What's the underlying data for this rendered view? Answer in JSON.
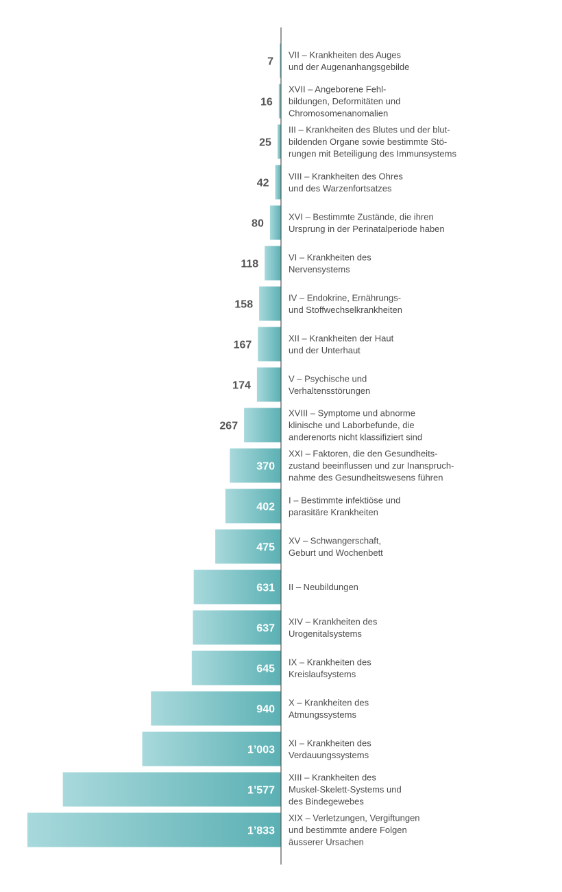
{
  "colors": {
    "bar_light": "#a8d9dc",
    "bar_dark": "#5bb0b3",
    "value_outside": "#555555",
    "value_inside": "#ffffff",
    "axis": "#555555"
  },
  "chart_data": {
    "type": "bar",
    "orientation": "horizontal",
    "title": "",
    "xlabel": "",
    "ylabel": "",
    "xlim": [
      0,
      1833
    ],
    "grid": false,
    "legend": "none",
    "categories": [
      [
        "VII – Krankheiten des Auges",
        "und der Augenanhangsgebilde"
      ],
      [
        "XVII – Angeborene Fehl-",
        "bildungen, Deformitäten und",
        "Chromosomenanomalien"
      ],
      [
        "III – Krankheiten des Blutes und der blut-",
        "bildenden Organe sowie bestimmte Stö-",
        "rungen mit Beteiligung des Immunsystems"
      ],
      [
        "VIII – Krankheiten des Ohres",
        "und des Warzenfortsatzes"
      ],
      [
        "XVI – Bestimmte Zustände, die ihren",
        "Ursprung in der Perinatalperiode haben"
      ],
      [
        "VI – Krankheiten des",
        "Nervensystems"
      ],
      [
        "IV – Endokrine, Ernährungs-",
        "und Stoffwechselkrankheiten"
      ],
      [
        "XII – Krankheiten der Haut",
        "und der Unterhaut"
      ],
      [
        "V – Psychische und",
        "Verhaltensstörungen"
      ],
      [
        "XVIII – Symptome und abnorme",
        "klinische und Laborbefunde, die",
        "anderenorts nicht klassifiziert sind"
      ],
      [
        "XXI – Faktoren, die den Gesundheits-",
        "zustand beeinflussen und zur Inanspruch-",
        "nahme des Gesundheitswesens führen"
      ],
      [
        "I – Bestimmte infektiöse und",
        "parasitäre Krankheiten"
      ],
      [
        "XV – Schwangerschaft,",
        "Geburt und Wochenbett"
      ],
      [
        "II – Neubildungen"
      ],
      [
        "XIV – Krankheiten des",
        "Urogenitalsystems"
      ],
      [
        "IX – Krankheiten des",
        "Kreislaufsystems"
      ],
      [
        "X – Krankheiten des",
        "Atmungssystems"
      ],
      [
        "XI – Krankheiten des",
        "Verdauungssystems"
      ],
      [
        "XIII – Krankheiten des",
        "Muskel-Skelett-Systems und",
        "des Bindegewebes"
      ],
      [
        "XIX – Verletzungen, Vergiftungen",
        "und bestimmte andere Folgen",
        "äusserer Ursachen"
      ]
    ],
    "values": [
      7,
      16,
      25,
      42,
      80,
      118,
      158,
      167,
      174,
      267,
      370,
      402,
      475,
      631,
      637,
      645,
      940,
      1003,
      1577,
      1833
    ],
    "value_labels": [
      "7",
      "16",
      "25",
      "42",
      "80",
      "118",
      "158",
      "167",
      "174",
      "267",
      "370",
      "402",
      "475",
      "631",
      "637",
      "645",
      "940",
      "1’003",
      "1’577",
      "1’833"
    ]
  }
}
